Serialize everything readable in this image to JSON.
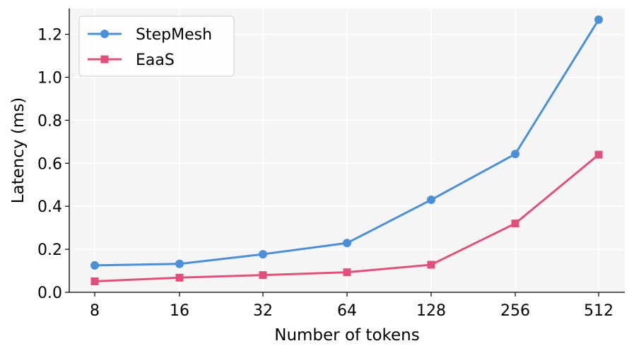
{
  "chart_data": {
    "type": "line",
    "categories": [
      "8",
      "16",
      "32",
      "64",
      "128",
      "256",
      "512"
    ],
    "series": [
      {
        "name": "StepMesh",
        "values": [
          0.125,
          0.132,
          0.177,
          0.229,
          0.43,
          0.643,
          1.268
        ],
        "color": "#4a90d9",
        "marker": "circle"
      },
      {
        "name": "EaaS",
        "values": [
          0.051,
          0.068,
          0.08,
          0.093,
          0.128,
          0.32,
          0.64
        ],
        "color": "#e0507a",
        "marker": "square"
      }
    ],
    "xlabel": "Number of tokens",
    "ylabel": "Latency (ms)",
    "ylim": [
      0.0,
      1.32
    ],
    "yticks": [
      "0.0",
      "0.2",
      "0.4",
      "0.6",
      "0.8",
      "1.0",
      "1.2"
    ],
    "ytick_values": [
      0.0,
      0.2,
      0.4,
      0.6,
      0.8,
      1.0,
      1.2
    ],
    "grid": true,
    "background": "#f5f5f5",
    "legend_position": "top-left"
  }
}
